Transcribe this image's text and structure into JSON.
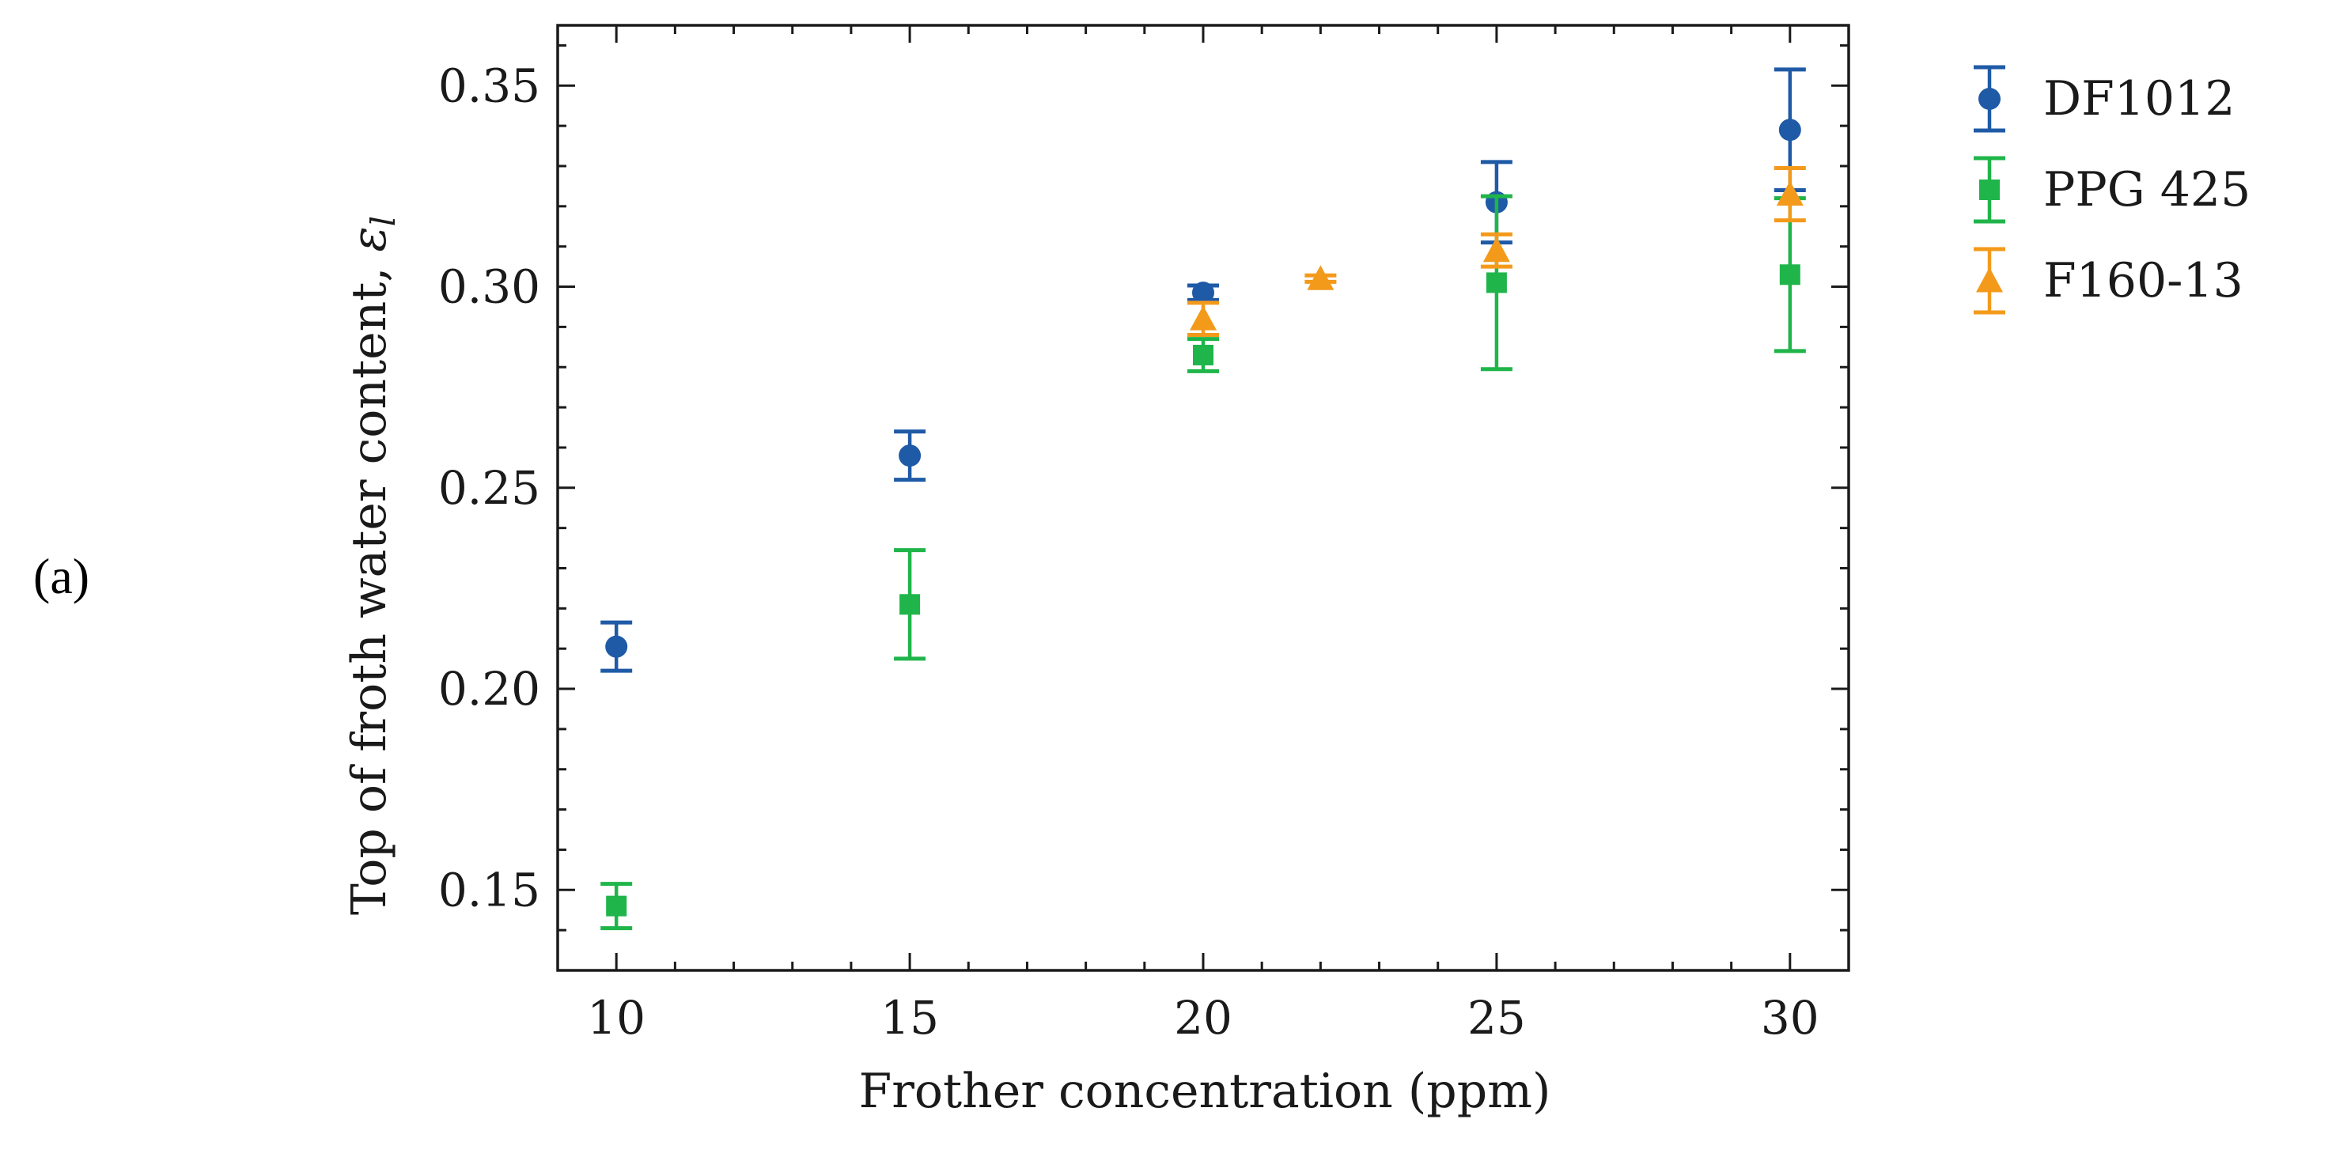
{
  "panel_label": "(a)",
  "chart_data": {
    "type": "scatter",
    "title": "",
    "xlabel": "Frother concentration (ppm)",
    "ylabel": "Top of froth water content, ",
    "ylabel_symbol": "ε",
    "ylabel_subscript": "l",
    "xlim": [
      9,
      31
    ],
    "ylim": [
      0.13,
      0.365
    ],
    "x_ticks": [
      10,
      15,
      20,
      25,
      30
    ],
    "x_tick_labels": [
      "10",
      "15",
      "20",
      "25",
      "30"
    ],
    "x_minor_step": 1,
    "y_ticks": [
      0.15,
      0.2,
      0.25,
      0.3,
      0.35
    ],
    "y_tick_labels": [
      "0.15",
      "0.20",
      "0.25",
      "0.30",
      "0.35"
    ],
    "y_minor_step": 0.01,
    "grid": false,
    "legend_position": "outside-right",
    "series": [
      {
        "name": "DF1012",
        "marker": "circle",
        "color": "#1f5aa6",
        "points": [
          {
            "x": 10,
            "y": 0.2105,
            "err": 0.006
          },
          {
            "x": 15,
            "y": 0.258,
            "err": 0.006
          },
          {
            "x": 20,
            "y": 0.2985,
            "err": 0.0018
          },
          {
            "x": 25,
            "y": 0.321,
            "err": 0.01
          },
          {
            "x": 30,
            "y": 0.339,
            "err": 0.015
          }
        ]
      },
      {
        "name": "PPG 425",
        "marker": "square",
        "color": "#1fb54a",
        "points": [
          {
            "x": 10,
            "y": 0.146,
            "err": 0.0055
          },
          {
            "x": 15,
            "y": 0.221,
            "err": 0.0135
          },
          {
            "x": 20,
            "y": 0.283,
            "err": 0.004
          },
          {
            "x": 25,
            "y": 0.301,
            "err": 0.0215
          },
          {
            "x": 30,
            "y": 0.303,
            "err": 0.019
          }
        ]
      },
      {
        "name": "F160-13",
        "marker": "triangle",
        "color": "#f39a1b",
        "points": [
          {
            "x": 20,
            "y": 0.292,
            "err": 0.004
          },
          {
            "x": 22,
            "y": 0.302,
            "err": 0.0008
          },
          {
            "x": 25,
            "y": 0.309,
            "err": 0.004
          },
          {
            "x": 30,
            "y": 0.323,
            "err": 0.0065
          }
        ]
      }
    ]
  }
}
